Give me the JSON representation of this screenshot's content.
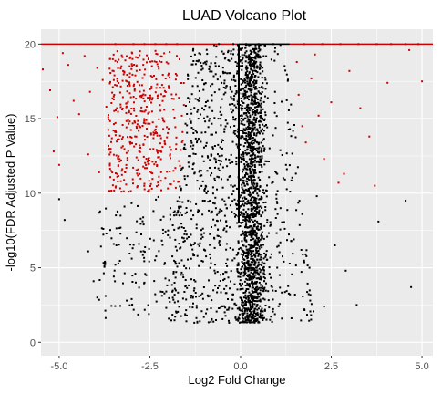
{
  "chart_data": {
    "type": "scatter",
    "title": "LUAD Volcano Plot",
    "xlabel": "Log2 Fold Change",
    "ylabel": "-log10(FDR Adjusted P Value)",
    "xlim": [
      -5.5,
      5.3
    ],
    "ylim": [
      -0.9,
      21.0
    ],
    "x_ticks": [
      -5.0,
      -2.5,
      0.0,
      2.5,
      5.0
    ],
    "x_tick_labels": [
      "-5.0",
      "-2.5",
      "0.0",
      "2.5",
      "5.0"
    ],
    "y_ticks": [
      0,
      5,
      10,
      15,
      20
    ],
    "y_tick_labels": [
      "0",
      "5",
      "10",
      "15",
      "20"
    ],
    "grid": true,
    "legend": "none",
    "y_cap": 20,
    "significance_thresholds": {
      "abs_log2fc": 1.5,
      "neg_log10_fdr": 10
    },
    "colors": {
      "panel_background": "#ebebeb",
      "gridline": "#ffffff",
      "significant": "#cc0000",
      "not_significant": "#000000"
    },
    "series": [
      {
        "color": "#cc0000",
        "points": [
          [
            -5.45,
            18.3
          ],
          [
            -5.25,
            16.9
          ],
          [
            -5.05,
            15.1
          ],
          [
            -4.9,
            19.4
          ],
          [
            -4.75,
            18.6
          ],
          [
            -4.6,
            16.2
          ],
          [
            -4.45,
            15.3
          ],
          [
            -4.3,
            19.2
          ],
          [
            -4.15,
            16.8
          ],
          [
            -3.95,
            18.4
          ],
          [
            -3.8,
            17.6
          ],
          [
            -3.7,
            15.8
          ],
          [
            -3.6,
            19.0
          ],
          [
            -3.5,
            14.2
          ],
          [
            -3.35,
            13.6
          ],
          [
            -3.2,
            18.1
          ],
          [
            -3.05,
            16.7
          ],
          [
            -2.9,
            17.9
          ],
          [
            -2.75,
            15.5
          ],
          [
            -2.6,
            14.9
          ],
          [
            -2.45,
            16.3
          ],
          [
            -2.3,
            17.3
          ],
          [
            -2.15,
            13.1
          ],
          [
            -2.0,
            18.7
          ],
          [
            -1.85,
            15.6
          ],
          [
            -1.7,
            16.4
          ],
          [
            -1.6,
            14.1
          ],
          [
            -5.15,
            12.8
          ],
          [
            -5.0,
            11.9
          ],
          [
            -4.2,
            12.6
          ],
          [
            -3.9,
            11.4
          ],
          [
            -3.3,
            10.8
          ],
          [
            -3.15,
            11.7
          ],
          [
            -2.85,
            10.4
          ],
          [
            -2.55,
            12.2
          ],
          [
            -2.25,
            11.1
          ],
          [
            -1.95,
            10.6
          ],
          [
            -1.65,
            12.9
          ],
          [
            1.55,
            18.8
          ],
          [
            1.6,
            16.6
          ],
          [
            1.7,
            14.5
          ],
          [
            1.8,
            13.4
          ],
          [
            1.95,
            17.7
          ],
          [
            2.05,
            19.3
          ],
          [
            2.15,
            15.2
          ],
          [
            2.3,
            12.3
          ],
          [
            2.5,
            16.1
          ],
          [
            2.7,
            10.7
          ],
          [
            2.85,
            11.3
          ],
          [
            3.0,
            18.2
          ],
          [
            3.3,
            15.7
          ],
          [
            3.55,
            13.8
          ],
          [
            3.7,
            10.5
          ],
          [
            4.05,
            17.4
          ],
          [
            5.0,
            17.5
          ],
          [
            4.65,
            19.6
          ],
          [
            -3.45,
            20
          ],
          [
            -2.95,
            20
          ],
          [
            -2.65,
            20
          ],
          [
            -2.35,
            20
          ],
          [
            -2.05,
            20
          ],
          [
            -1.75,
            20
          ],
          [
            1.75,
            20
          ],
          [
            2.25,
            20
          ],
          [
            2.75,
            20
          ],
          [
            3.25,
            20
          ],
          [
            3.75,
            20
          ],
          [
            4.15,
            20
          ],
          [
            4.55,
            20
          ],
          [
            4.9,
            20
          ]
        ]
      },
      {
        "color": "#000000",
        "points": [
          [
            -5.0,
            9.6
          ],
          [
            -4.85,
            8.2
          ],
          [
            -4.2,
            6.1
          ],
          [
            -4.05,
            4.1
          ],
          [
            -3.95,
            3.0
          ],
          [
            -3.7,
            7.3
          ],
          [
            -3.45,
            5.2
          ],
          [
            -3.2,
            9.1
          ],
          [
            -3.0,
            2.9
          ],
          [
            -2.8,
            6.6
          ],
          [
            -2.6,
            4.5
          ],
          [
            -2.4,
            8.8
          ],
          [
            -2.2,
            3.4
          ],
          [
            -2.0,
            7.5
          ],
          [
            -1.8,
            5.4
          ],
          [
            -1.6,
            9.4
          ],
          [
            -1.45,
            16.4
          ],
          [
            -1.3,
            13.2
          ],
          [
            -1.15,
            18.9
          ],
          [
            -1.0,
            6.2
          ],
          [
            -0.85,
            11.7
          ],
          [
            -0.7,
            3.8
          ],
          [
            -0.55,
            15.0
          ],
          [
            -0.4,
            8.1
          ],
          [
            -0.25,
            17.6
          ],
          [
            -0.1,
            10.3
          ],
          [
            0.05,
            5.7
          ],
          [
            0.2,
            19.1
          ],
          [
            0.35,
            12.6
          ],
          [
            0.5,
            7.0
          ],
          [
            0.65,
            14.2
          ],
          [
            0.8,
            4.6
          ],
          [
            0.95,
            16.8
          ],
          [
            1.1,
            9.0
          ],
          [
            1.25,
            11.9
          ],
          [
            1.4,
            6.8
          ],
          [
            1.5,
            3.2
          ],
          [
            1.7,
            8.6
          ],
          [
            1.9,
            5.0
          ],
          [
            2.1,
            9.8
          ],
          [
            2.3,
            2.4
          ],
          [
            2.6,
            6.5
          ],
          [
            2.9,
            4.8
          ],
          [
            3.2,
            2.5
          ],
          [
            3.8,
            8.1
          ],
          [
            4.55,
            9.5
          ],
          [
            4.7,
            3.7
          ],
          [
            -0.6,
            20
          ],
          [
            -0.2,
            20
          ],
          [
            0.15,
            20
          ],
          [
            0.5,
            20
          ],
          [
            0.9,
            20
          ]
        ]
      }
    ]
  }
}
